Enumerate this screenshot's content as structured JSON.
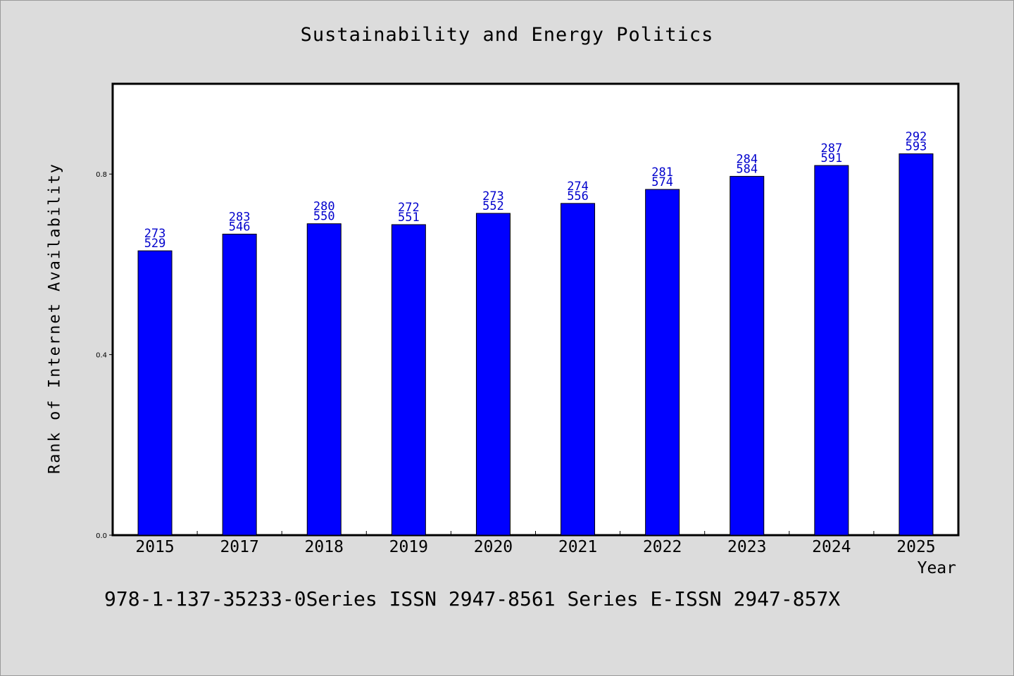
{
  "chart_data": {
    "type": "bar",
    "title": "Sustainability and Energy Politics",
    "xlabel": "Year",
    "ylabel": "Rank of Internet Availability",
    "categories": [
      "2015",
      "2017",
      "2018",
      "2019",
      "2020",
      "2021",
      "2022",
      "2023",
      "2024",
      "2025"
    ],
    "values": [
      0.63,
      0.667,
      0.69,
      0.688,
      0.713,
      0.735,
      0.766,
      0.795,
      0.819,
      0.845
    ],
    "data_labels": [
      [
        "273",
        "529"
      ],
      [
        "283",
        "546"
      ],
      [
        "280",
        "550"
      ],
      [
        "272",
        "551"
      ],
      [
        "273",
        "552"
      ],
      [
        "274",
        "556"
      ],
      [
        "281",
        "574"
      ],
      [
        "284",
        "584"
      ],
      [
        "287",
        "591"
      ],
      [
        "292",
        "593"
      ]
    ],
    "yticks": [
      "0.0",
      "0.4",
      "0.8"
    ],
    "ylim": [
      0,
      1.0
    ],
    "grid": false,
    "legend": "none",
    "colors": {
      "bar": "#0000ff",
      "label": "#0000cc",
      "background": "#dcdcdc",
      "plot": "#ffffff"
    }
  },
  "footer": "978-1-137-35233-0Series ISSN 2947-8561 Series E-ISSN 2947-857X"
}
